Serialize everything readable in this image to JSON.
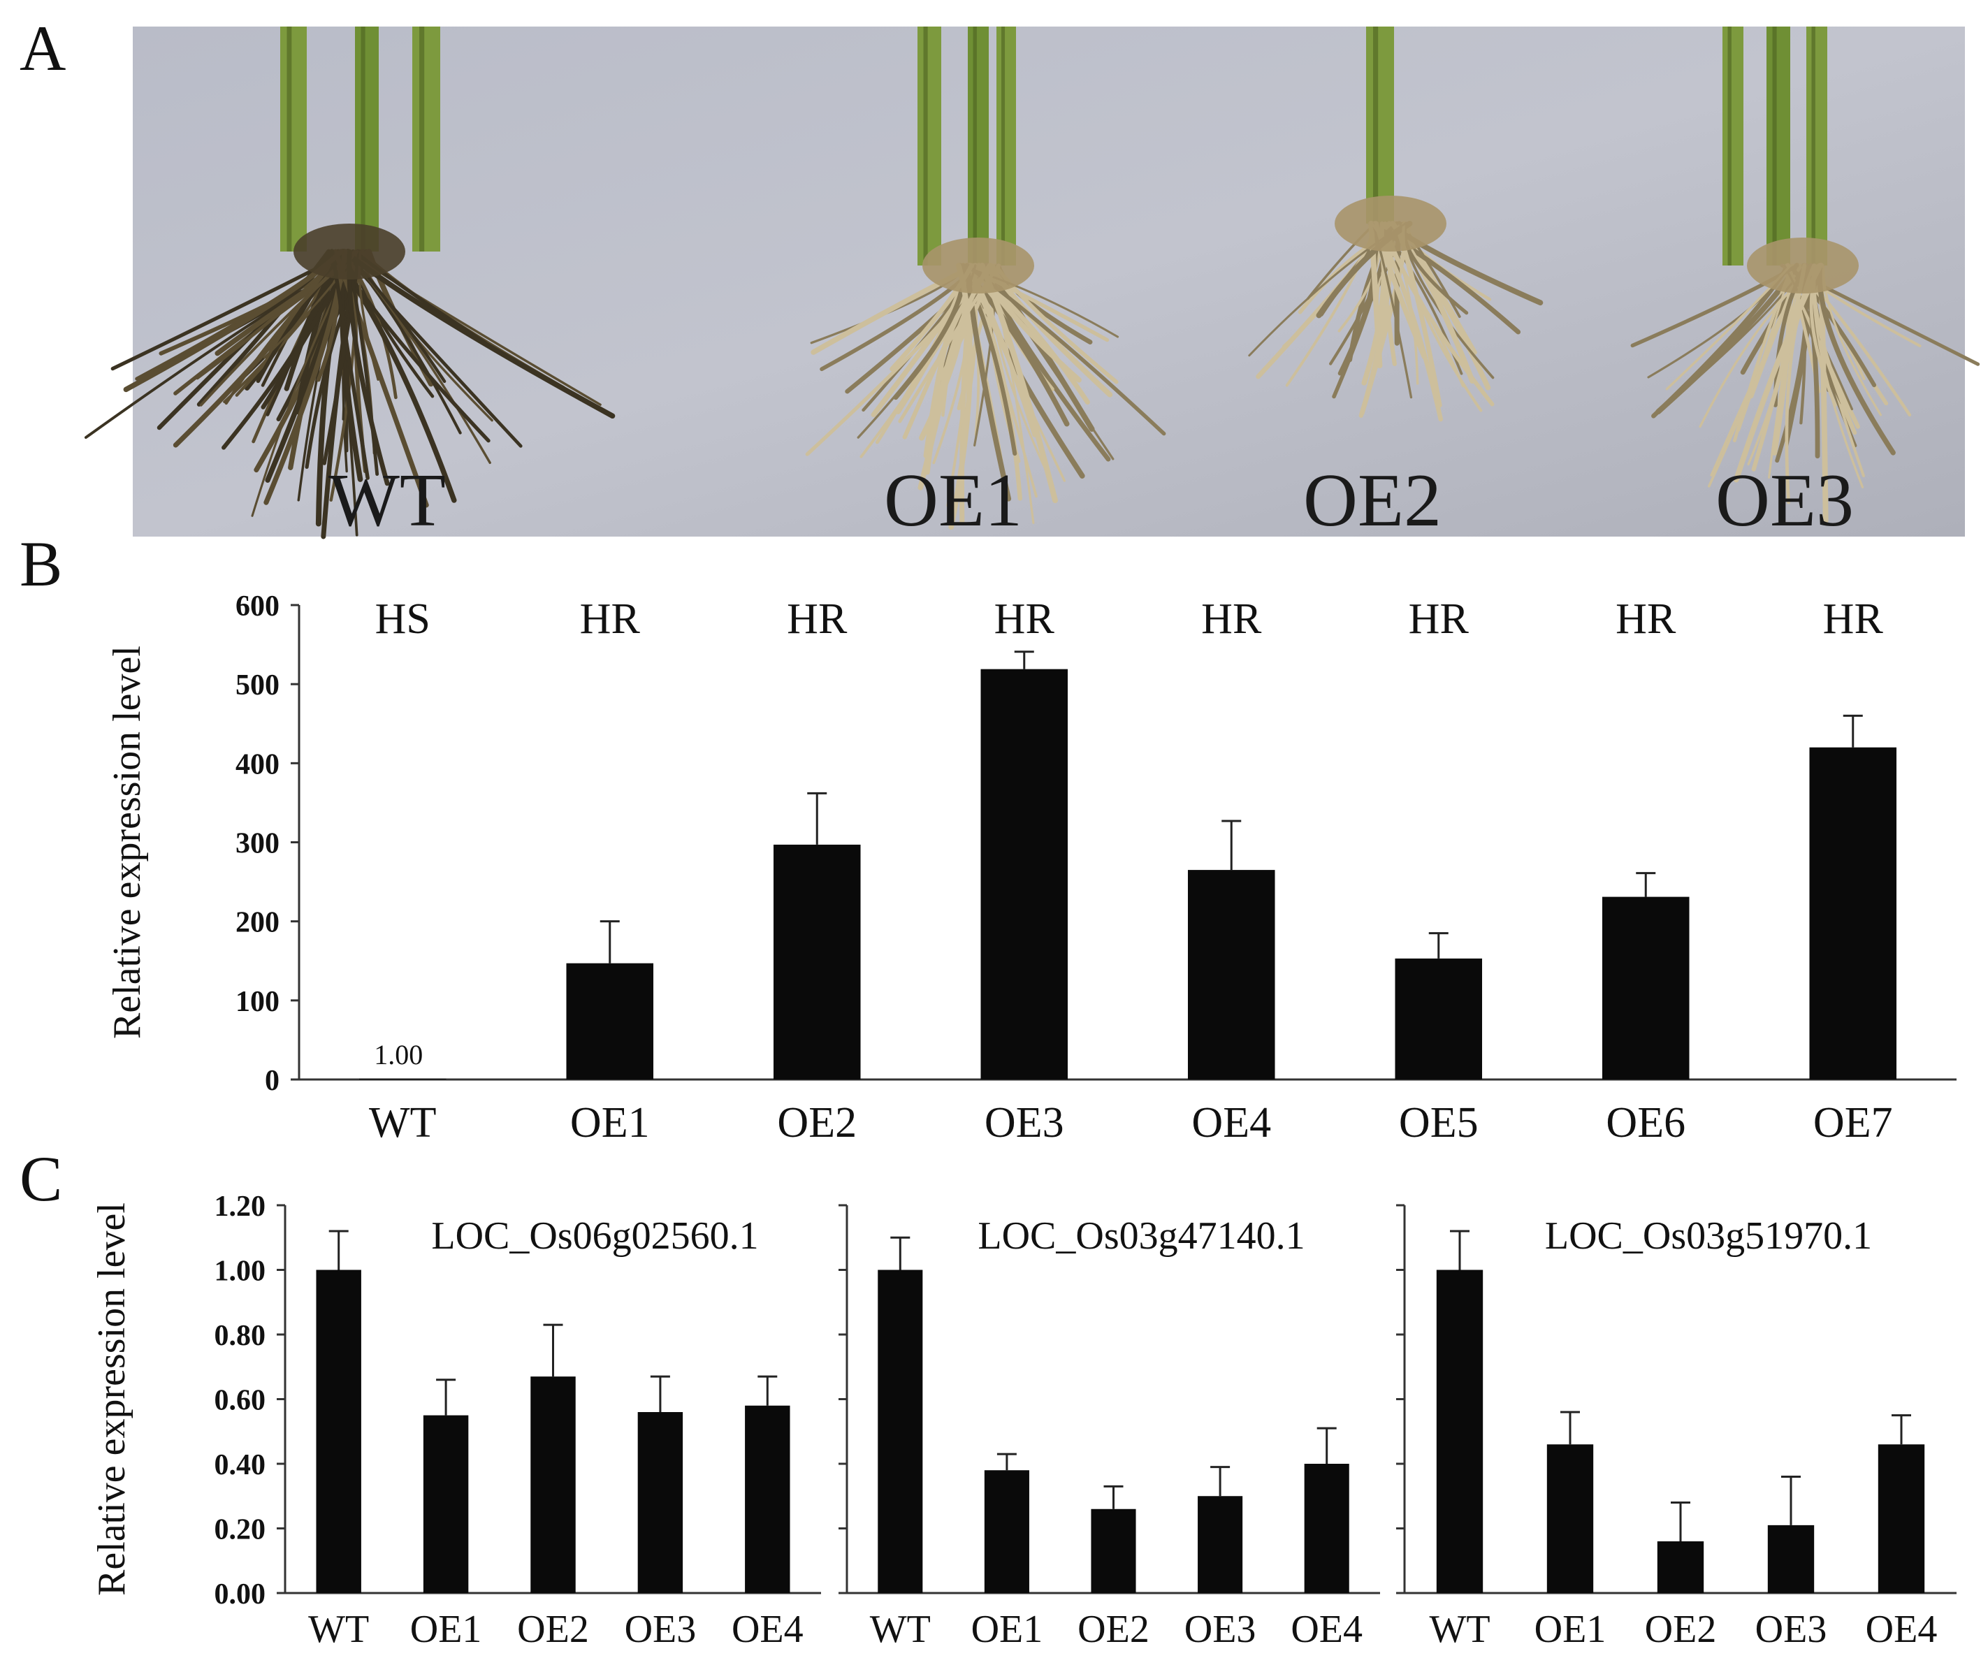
{
  "panel_letters": {
    "a": "A",
    "b": "B",
    "c": "C"
  },
  "photo": {
    "labels": [
      "WT",
      "OE1",
      "OE2",
      "OE3"
    ]
  },
  "chart_data": [
    {
      "type": "bar",
      "panel": "B",
      "ylabel": "Relative expression level",
      "ylim": [
        0,
        600
      ],
      "yticks": [
        "0",
        "100",
        "200",
        "300",
        "400",
        "500",
        "600"
      ],
      "categories": [
        "WT",
        "OE1",
        "OE2",
        "OE3",
        "OE4",
        "OE5",
        "OE6",
        "OE7"
      ],
      "values": [
        1.0,
        147,
        297,
        519,
        265,
        153,
        231,
        420
      ],
      "errors": [
        0,
        53,
        65,
        22,
        62,
        32,
        30,
        40
      ],
      "annotations": [
        "HS",
        "HR",
        "HR",
        "HR",
        "HR",
        "HR",
        "HR",
        "HR"
      ],
      "value_labels": [
        "1.00",
        "",
        "",
        "",
        "",
        "",
        "",
        ""
      ],
      "bar_color": "#0a0a0a",
      "grid": false
    },
    {
      "type": "bar",
      "panel": "C",
      "title": "LOC_Os06g02560.1",
      "ylabel": "Relative expression level",
      "ylim": [
        0,
        1.2
      ],
      "yticks": [
        "0.00",
        "0.20",
        "0.40",
        "0.60",
        "0.80",
        "1.00",
        "1.20"
      ],
      "categories": [
        "WT",
        "OE1",
        "OE2",
        "OE3",
        "OE4"
      ],
      "values": [
        1.0,
        0.55,
        0.67,
        0.56,
        0.58
      ],
      "errors": [
        0.12,
        0.11,
        0.16,
        0.11,
        0.09
      ],
      "bar_color": "#0a0a0a",
      "grid": false
    },
    {
      "type": "bar",
      "panel": "C",
      "title": "LOC_Os03g47140.1",
      "ylim": [
        0,
        1.2
      ],
      "categories": [
        "WT",
        "OE1",
        "OE2",
        "OE3",
        "OE4"
      ],
      "values": [
        1.0,
        0.38,
        0.26,
        0.3,
        0.4
      ],
      "errors": [
        0.1,
        0.05,
        0.07,
        0.09,
        0.11
      ],
      "bar_color": "#0a0a0a",
      "grid": false
    },
    {
      "type": "bar",
      "panel": "C",
      "title": "LOC_Os03g51970.1",
      "ylim": [
        0,
        1.2
      ],
      "categories": [
        "WT",
        "OE1",
        "OE2",
        "OE3",
        "OE4"
      ],
      "values": [
        1.0,
        0.46,
        0.16,
        0.21,
        0.46
      ],
      "errors": [
        0.12,
        0.1,
        0.12,
        0.15,
        0.09
      ],
      "bar_color": "#0a0a0a",
      "grid": false
    }
  ]
}
